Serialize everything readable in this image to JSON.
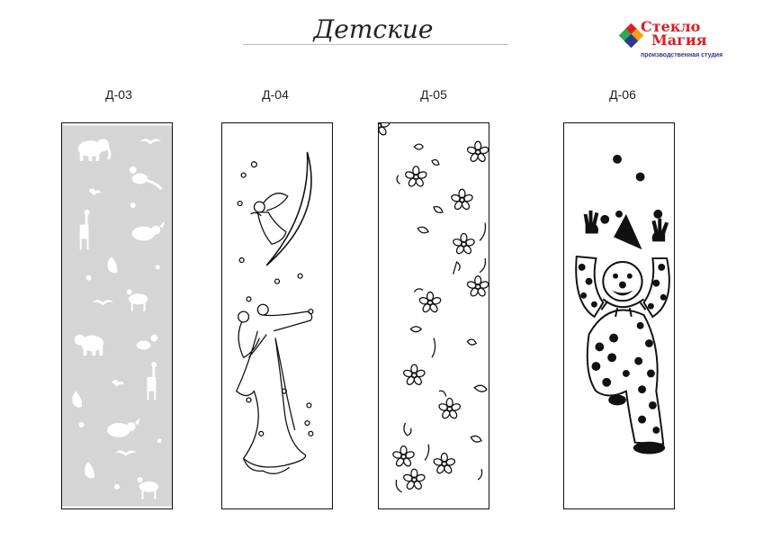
{
  "header": {
    "title": "Детские"
  },
  "logo": {
    "line1": "Стекло",
    "line2": "Магия",
    "subtitle": "производственная студия",
    "colors": [
      "#e21f26",
      "#f6a01a",
      "#2fa84f",
      "#2a3b8f"
    ]
  },
  "panels": [
    {
      "code": "Д-03",
      "motif": "animals-frosted-icon"
    },
    {
      "code": "Д-04",
      "motif": "angel-dancers-icon"
    },
    {
      "code": "Д-05",
      "motif": "flowers-icon"
    },
    {
      "code": "Д-06",
      "motif": "clown-icon"
    }
  ]
}
